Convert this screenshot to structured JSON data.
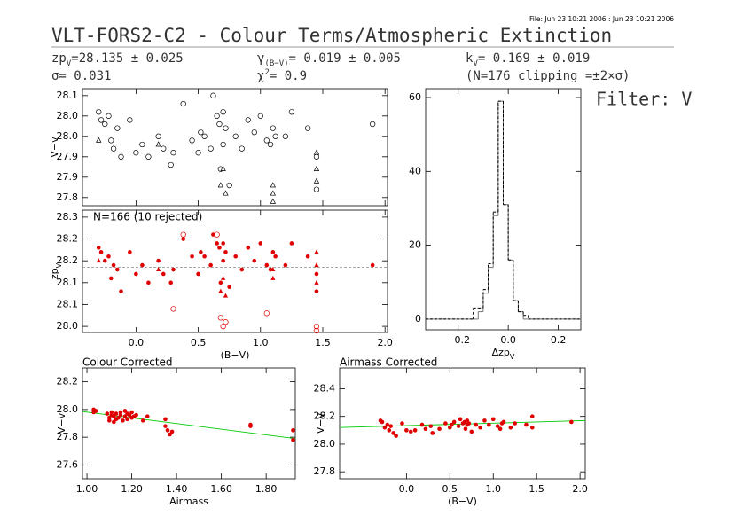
{
  "header": {
    "file": "File: Jun 23 10:21 2006 : Jun 23 10:21 2006",
    "title": "VLT-FORS2-C2 - Colour Terms/Atmospheric Extinction",
    "zp": {
      "text": "zp",
      "sub": "V",
      "rest": "=28.135 ± 0.025"
    },
    "gamma": {
      "text": "γ",
      "sub": "(B−V)",
      "rest": "= 0.019 ± 0.005"
    },
    "k": {
      "text": "k",
      "sub": "V",
      "rest": "= 0.169 ± 0.019"
    },
    "sigma": "σ=  0.031",
    "chi": {
      "text": "χ",
      "sup": "2",
      "rest": "=   0.9"
    },
    "clipping": "(N=176 clipping =±2×σ)",
    "filter": "Filter: V"
  },
  "chart_data": [
    {
      "type": "scatter",
      "ylabel": "V−v",
      "xlim": [
        -0.43,
        2.02
      ],
      "ylim": [
        27.83,
        28.117
      ],
      "xticks": [
        0,
        0.5,
        1,
        1.5,
        2
      ],
      "xtick_labels": false,
      "yticks": [
        28.1,
        {
          "value": 28.05,
          "label": "28.0"
        },
        {
          "value": 28,
          "label": "28.0"
        },
        {
          "value": 27.95,
          "label": "27.9"
        },
        27.9,
        {
          "value": 27.85,
          "label": "27.8"
        }
      ],
      "series": [
        {
          "color": "#000000",
          "marker": "open-circle",
          "x": [
            -0.3,
            -0.28,
            -0.25,
            -0.22,
            -0.2,
            -0.18,
            -0.15,
            -0.12,
            -0.05,
            0.0,
            0.05,
            0.1,
            0.18,
            0.22,
            0.28,
            0.3,
            0.38,
            0.45,
            0.5,
            0.52,
            0.55,
            0.6,
            0.62,
            0.65,
            0.67,
            0.68,
            0.7,
            0.7,
            0.72,
            0.75,
            0.8,
            0.85,
            0.9,
            0.95,
            1.0,
            1.05,
            1.08,
            1.1,
            1.12,
            1.2,
            1.25,
            1.38,
            1.45,
            1.45,
            1.9
          ],
          "values": [
            28.06,
            28.04,
            28.03,
            28.05,
            27.99,
            27.97,
            28.02,
            27.95,
            28.04,
            27.96,
            27.98,
            27.95,
            28.0,
            27.97,
            27.93,
            27.96,
            28.08,
            27.99,
            27.96,
            28.01,
            28.0,
            27.97,
            28.1,
            28.05,
            28.03,
            27.92,
            27.98,
            28.06,
            28.02,
            27.88,
            28.0,
            27.97,
            28.04,
            28.01,
            28.05,
            27.99,
            27.98,
            28.02,
            28.0,
            28.0,
            28.06,
            28.02,
            27.95,
            27.87,
            28.03
          ]
        },
        {
          "color": "#000000",
          "marker": "open-triangle",
          "x": [
            -0.3,
            0.18,
            0.68,
            0.7,
            1.1,
            1.1,
            1.1,
            1.45,
            1.45,
            1.45,
            0.72
          ],
          "values": [
            27.99,
            27.98,
            27.88,
            27.92,
            27.86,
            27.88,
            27.84,
            27.92,
            27.89,
            27.96,
            27.86
          ]
        }
      ]
    },
    {
      "type": "scatter",
      "ylabel": {
        "text": "zp",
        "sub": "V"
      },
      "xlabel": "(B−V)",
      "annotation": "N=166 (10 rejected)",
      "xlim": [
        -0.43,
        2.02
      ],
      "ylim": [
        27.986,
        28.266
      ],
      "xticks": [
        {
          "value": 0,
          "label": "0.0"
        },
        0.5,
        {
          "value": 1,
          "label": "1.0"
        },
        1.5,
        {
          "value": 2,
          "label": "2.0"
        }
      ],
      "yticks": [
        {
          "value": 28.25,
          "label": "28.3"
        },
        28.2,
        {
          "value": 28.15,
          "label": "28.2"
        },
        28.1,
        {
          "value": 28.05,
          "label": "28.1"
        },
        {
          "value": 28,
          "label": "28.0"
        }
      ],
      "hline": 28.135,
      "series": [
        {
          "color": "#e00000",
          "marker": "filled-circle",
          "x": [
            -0.3,
            -0.28,
            -0.25,
            -0.22,
            -0.2,
            -0.18,
            -0.15,
            -0.12,
            -0.05,
            0.0,
            0.05,
            0.1,
            0.18,
            0.22,
            0.28,
            0.3,
            0.38,
            0.45,
            0.5,
            0.52,
            0.55,
            0.6,
            0.62,
            0.65,
            0.67,
            0.68,
            0.7,
            0.7,
            0.72,
            0.75,
            0.8,
            0.85,
            0.9,
            0.95,
            1.0,
            1.05,
            1.08,
            1.1,
            1.12,
            1.2,
            1.25,
            1.38,
            1.45,
            1.45,
            1.9
          ],
          "values": [
            28.18,
            28.17,
            28.15,
            28.16,
            28.11,
            28.14,
            28.13,
            28.08,
            28.17,
            28.12,
            28.14,
            28.1,
            28.15,
            28.12,
            28.1,
            28.13,
            28.2,
            28.16,
            28.12,
            28.17,
            28.16,
            28.14,
            28.21,
            28.19,
            28.18,
            28.1,
            28.15,
            28.19,
            28.17,
            28.09,
            28.16,
            28.13,
            28.18,
            28.15,
            28.19,
            28.14,
            28.13,
            28.17,
            28.16,
            28.14,
            28.19,
            28.16,
            28.12,
            28.08,
            28.14
          ]
        },
        {
          "color": "#e00000",
          "marker": "filled-triangle",
          "x": [
            -0.3,
            0.18,
            0.68,
            0.7,
            1.1,
            1.1,
            1.45,
            1.45,
            1.45,
            0.72
          ],
          "values": [
            28.15,
            28.13,
            28.08,
            28.11,
            28.11,
            28.13,
            28.17,
            28.1,
            28.14,
            28.07
          ]
        },
        {
          "color": "#e00000",
          "marker": "open-circle",
          "x": [
            0.38,
            0.65,
            0.3,
            0.68,
            0.7,
            0.72,
            1.05,
            1.45,
            1.45
          ],
          "values": [
            28.21,
            28.21,
            28.04,
            28.02,
            28.0,
            28.01,
            28.03,
            28.0,
            27.99
          ]
        }
      ]
    },
    {
      "type": "histogram",
      "xlabel": {
        "text": "Δzp",
        "sub": "V"
      },
      "xlim": [
        -0.33,
        0.29
      ],
      "ylim": [
        -2.9,
        62.4
      ],
      "xticks": [
        {
          "value": -0.2,
          "label": "−0.2"
        },
        {
          "value": 0,
          "label": "0.0"
        },
        0.2
      ],
      "yticks": [
        0,
        20,
        40,
        60
      ],
      "bins": [
        -0.33,
        -0.14,
        -0.12,
        -0.1,
        -0.08,
        -0.06,
        -0.04,
        -0.02,
        0.0,
        0.02,
        0.04,
        0.06,
        0.08,
        0.29
      ],
      "series": [
        {
          "color": "#777777",
          "dash": false,
          "values": [
            0,
            0,
            2,
            7,
            14,
            28,
            59,
            31,
            16,
            5,
            2,
            0,
            0
          ]
        },
        {
          "color": "#000000",
          "dash": true,
          "values": [
            0,
            3,
            3,
            8,
            15,
            29,
            59,
            31,
            16,
            5,
            2,
            1,
            0
          ]
        }
      ]
    },
    {
      "type": "scatter",
      "title": "Colour Corrected",
      "ylabel": "V−v",
      "xlabel": "Airmass",
      "xlim": [
        0.98,
        1.93
      ],
      "ylim": [
        27.5,
        28.3
      ],
      "xticks": [
        {
          "value": 1,
          "label": "1.00"
        },
        {
          "value": 1.2,
          "label": "1.20"
        },
        {
          "value": 1.4,
          "label": "1.40"
        },
        {
          "value": 1.6,
          "label": "1.60"
        },
        {
          "value": 1.8,
          "label": "1.80"
        }
      ],
      "yticks": [
        27.6,
        27.8,
        {
          "value": 28,
          "label": "28.0"
        },
        28.2
      ],
      "lines": [
        {
          "color": "#00cc00",
          "x": [
            0.98,
            1.93
          ],
          "values": [
            27.985,
            27.79
          ]
        }
      ],
      "series": [
        {
          "color": "#e00000",
          "marker": "filled-circle",
          "x": [
            1.03,
            1.03,
            1.04,
            1.09,
            1.1,
            1.1,
            1.11,
            1.11,
            1.12,
            1.12,
            1.13,
            1.13,
            1.14,
            1.15,
            1.15,
            1.16,
            1.17,
            1.17,
            1.18,
            1.18,
            1.19,
            1.2,
            1.2,
            1.21,
            1.22,
            1.25,
            1.27,
            1.35,
            1.35,
            1.36,
            1.37,
            1.38,
            1.73,
            1.73,
            1.92,
            1.92
          ],
          "values": [
            28.0,
            27.98,
            27.99,
            27.97,
            27.94,
            27.92,
            27.96,
            27.98,
            27.91,
            27.95,
            27.97,
            27.93,
            27.94,
            27.98,
            27.96,
            27.92,
            27.99,
            27.95,
            27.97,
            27.93,
            27.96,
            27.94,
            27.98,
            27.95,
            27.96,
            27.92,
            27.95,
            27.93,
            27.88,
            27.85,
            27.82,
            27.84,
            27.89,
            27.88,
            27.85,
            27.78
          ]
        }
      ]
    },
    {
      "type": "scatter",
      "title": "Airmass Corrected",
      "ylabel": "V−v",
      "xlabel": "(B−V)",
      "xlim": [
        -0.77,
        2.06
      ],
      "ylim": [
        27.75,
        28.55
      ],
      "xticks": [
        {
          "value": 0,
          "label": "0.0"
        },
        0.5,
        {
          "value": 1,
          "label": "1.0"
        },
        1.5,
        {
          "value": 2,
          "label": "2.0"
        }
      ],
      "yticks": [
        27.8,
        {
          "value": 28,
          "label": "28.0"
        },
        28.2,
        28.4
      ],
      "lines": [
        {
          "color": "#00cc00",
          "x": [
            -0.77,
            2.06
          ],
          "values": [
            28.12,
            28.17
          ]
        }
      ],
      "series": [
        {
          "color": "#e00000",
          "marker": "filled-circle",
          "x": [
            -0.3,
            -0.28,
            -0.25,
            -0.22,
            -0.2,
            -0.18,
            -0.15,
            -0.12,
            -0.05,
            0.0,
            0.05,
            0.1,
            0.18,
            0.22,
            0.28,
            0.3,
            0.38,
            0.45,
            0.5,
            0.52,
            0.55,
            0.6,
            0.62,
            0.65,
            0.67,
            0.68,
            0.7,
            0.7,
            0.72,
            0.75,
            0.8,
            0.85,
            0.9,
            0.95,
            1.0,
            1.05,
            1.08,
            1.1,
            1.12,
            1.2,
            1.25,
            1.38,
            1.45,
            1.45,
            1.9
          ],
          "values": [
            28.17,
            28.16,
            28.12,
            28.14,
            28.1,
            28.13,
            28.08,
            28.06,
            28.15,
            28.1,
            28.09,
            28.1,
            28.14,
            28.11,
            28.13,
            28.08,
            28.11,
            28.15,
            28.12,
            28.14,
            28.16,
            28.13,
            28.18,
            28.15,
            28.16,
            28.11,
            28.14,
            28.17,
            28.15,
            28.09,
            28.14,
            28.12,
            28.17,
            28.14,
            28.18,
            28.13,
            28.11,
            28.15,
            28.16,
            28.12,
            28.15,
            28.14,
            28.12,
            28.2,
            28.16
          ]
        }
      ]
    }
  ]
}
